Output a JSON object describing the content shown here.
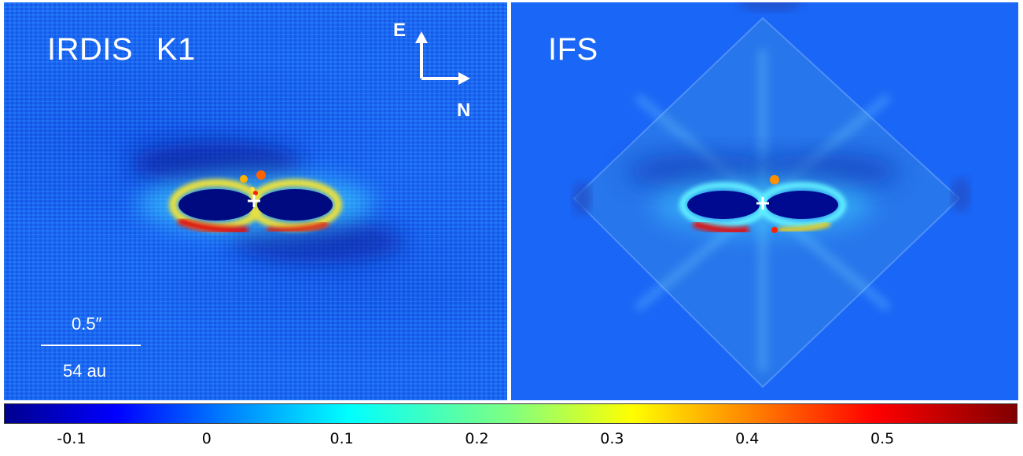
{
  "panels": {
    "left": {
      "title": "IRDIS   K1",
      "compass": {
        "east": "E",
        "north": "N"
      },
      "scale": {
        "angular": "0.5″",
        "physical": "54 au"
      }
    },
    "right": {
      "title": "IFS"
    }
  },
  "colorbar": {
    "ticks": [
      "-0.1",
      "0",
      "0.1",
      "0.2",
      "0.3",
      "0.4",
      "0.5"
    ],
    "colormap": "jet",
    "min": -0.15,
    "max": 0.6
  },
  "colors": {
    "background_left": "#1c68f2",
    "background_right": "#1a66f6",
    "annotation": "#ffffff"
  },
  "icons": {
    "compass": "compass-arrows-icon",
    "star": "star-position-cross-icon"
  }
}
